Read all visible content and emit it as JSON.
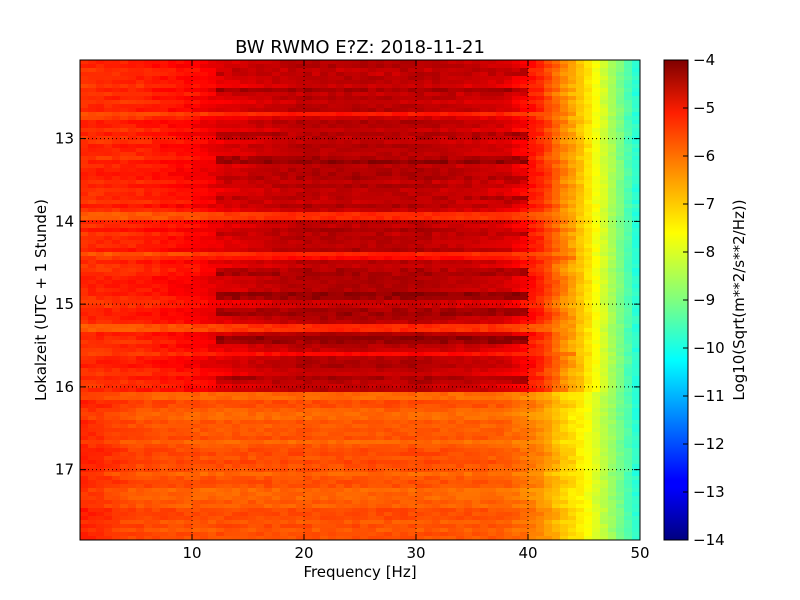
{
  "chart_data": {
    "type": "heatmap",
    "title": "BW RWMO E?Z: 2018-11-21",
    "xlabel": "Frequency [Hz]",
    "ylabel": "Lokalzeit (UTC + 1 Stunde)",
    "colorbar_label": "Log10(Sqrt(m**2/s**2/Hz))",
    "colormap": "jet",
    "grid": true,
    "xlim": [
      0,
      50
    ],
    "ylim": [
      17.85,
      12.05
    ],
    "clim": [
      -14,
      -4
    ],
    "x_ticks": [
      10,
      20,
      30,
      40,
      50
    ],
    "x_tick_labels": [
      "10",
      "20",
      "30",
      "40",
      "50"
    ],
    "y_ticks": [
      13,
      14,
      15,
      16,
      17
    ],
    "y_tick_labels": [
      "13",
      "14",
      "15",
      "16",
      "17"
    ],
    "colorbar_ticks": [
      -4,
      -5,
      -6,
      -7,
      -8,
      -9,
      -10,
      -11,
      -12,
      -13,
      -14
    ],
    "colorbar_tick_labels": [
      "−4",
      "−5",
      "−6",
      "−7",
      "−8",
      "−9",
      "−10",
      "−11",
      "−12",
      "−13",
      "−14"
    ],
    "frequency_profile": {
      "x": [
        0,
        5,
        10,
        13,
        20,
        30,
        38,
        41,
        43,
        45,
        47,
        49,
        50
      ],
      "level_low_activity": [
        -5.6,
        -6.0,
        -6.1,
        -6.1,
        -6.1,
        -6.1,
        -6.2,
        -6.6,
        -7.2,
        -7.7,
        -8.5,
        -9.5,
        -10.0
      ],
      "level_high_activity": [
        -5.7,
        -5.6,
        -5.3,
        -5.0,
        -4.6,
        -4.6,
        -4.9,
        -5.6,
        -6.5,
        -7.3,
        -8.3,
        -9.5,
        -10.0
      ]
    },
    "activity_period": [
      12.05,
      16.05
    ],
    "loud_bands": [
      {
        "time": 12.2,
        "level": -4.6
      },
      {
        "time": 12.45,
        "level": -4.5
      },
      {
        "time": 12.7,
        "level": -4.3
      },
      {
        "time": 12.95,
        "level": -4.6
      },
      {
        "time": 13.25,
        "level": -4.3
      },
      {
        "time": 13.5,
        "level": -4.7
      },
      {
        "time": 13.75,
        "level": -4.6
      },
      {
        "time": 13.95,
        "level": -4.4
      },
      {
        "time": 14.15,
        "level": -4.5
      },
      {
        "time": 14.4,
        "level": -4.2
      },
      {
        "time": 14.6,
        "level": -4.4
      },
      {
        "time": 14.9,
        "level": -4.3
      },
      {
        "time": 15.1,
        "level": -4.5
      },
      {
        "time": 15.45,
        "level": -4.2
      },
      {
        "time": 15.9,
        "level": -4.5
      }
    ],
    "quiet_bands": [
      {
        "time": 12.7,
        "level": -6.3
      },
      {
        "time": 13.95,
        "level": -6.4
      },
      {
        "time": 14.4,
        "level": -6.2
      },
      {
        "time": 15.3,
        "level": -6.5
      },
      {
        "time": 15.6,
        "level": -6.2
      }
    ]
  }
}
